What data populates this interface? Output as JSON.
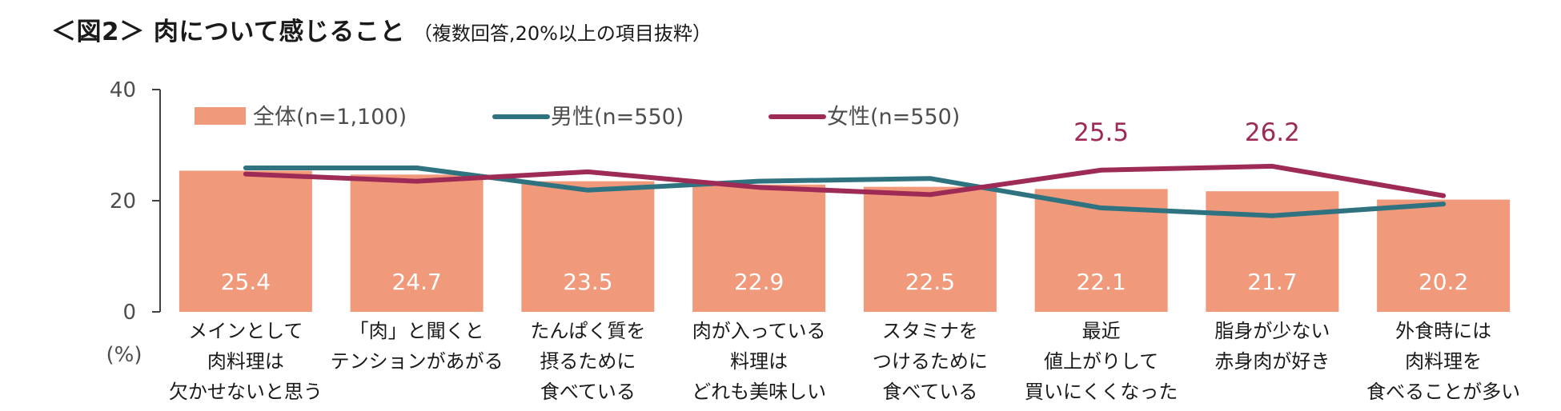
{
  "header": {
    "title": "＜図2＞ 肉について感じること",
    "subtitle": "（複数回答,20%以上の項目抜粋）"
  },
  "chart_data": {
    "type": "bar",
    "categories": [
      [
        "メインとして",
        "肉料理は",
        "欠かせないと思う"
      ],
      [
        "「肉」と聞くと",
        "テンションがあがる"
      ],
      [
        "たんぱく質を",
        "摂るために",
        "食べている"
      ],
      [
        "肉が入っている",
        "料理は",
        "どれも美味しい"
      ],
      [
        "スタミナを",
        "つけるために",
        "食べている"
      ],
      [
        "最近",
        "値上がりして",
        "買いにくくなった"
      ],
      [
        "脂身が少ない",
        "赤身肉が好き"
      ],
      [
        "外食時には",
        "肉料理を",
        "食べることが多い"
      ]
    ],
    "series": [
      {
        "name": "全体(n=1,100)",
        "kind": "bar",
        "color": "#f0997b",
        "values": [
          25.4,
          24.7,
          23.5,
          22.9,
          22.5,
          22.1,
          21.7,
          20.2
        ]
      },
      {
        "name": "男性(n=550)",
        "kind": "line",
        "color": "#2f7380",
        "values": [
          25.9,
          25.9,
          21.9,
          23.5,
          24.0,
          18.7,
          17.3,
          19.4
        ]
      },
      {
        "name": "女性(n=550)",
        "kind": "line",
        "color": "#9e2b55",
        "values": [
          24.8,
          23.5,
          25.2,
          22.4,
          21.1,
          25.5,
          26.2,
          20.9
        ]
      }
    ],
    "bar_labels": [
      "25.4",
      "24.7",
      "23.5",
      "22.9",
      "22.5",
      "22.1",
      "21.7",
      "20.2"
    ],
    "annotations": [
      {
        "category_index": 5,
        "value": 25.5,
        "text": "25.5"
      },
      {
        "category_index": 6,
        "value": 26.2,
        "text": "26.2"
      }
    ],
    "ylim": [
      0,
      40
    ],
    "yticks": [
      "0",
      "20",
      "40"
    ],
    "ylabel": "(%)",
    "legend_position": "top",
    "grid": false
  }
}
